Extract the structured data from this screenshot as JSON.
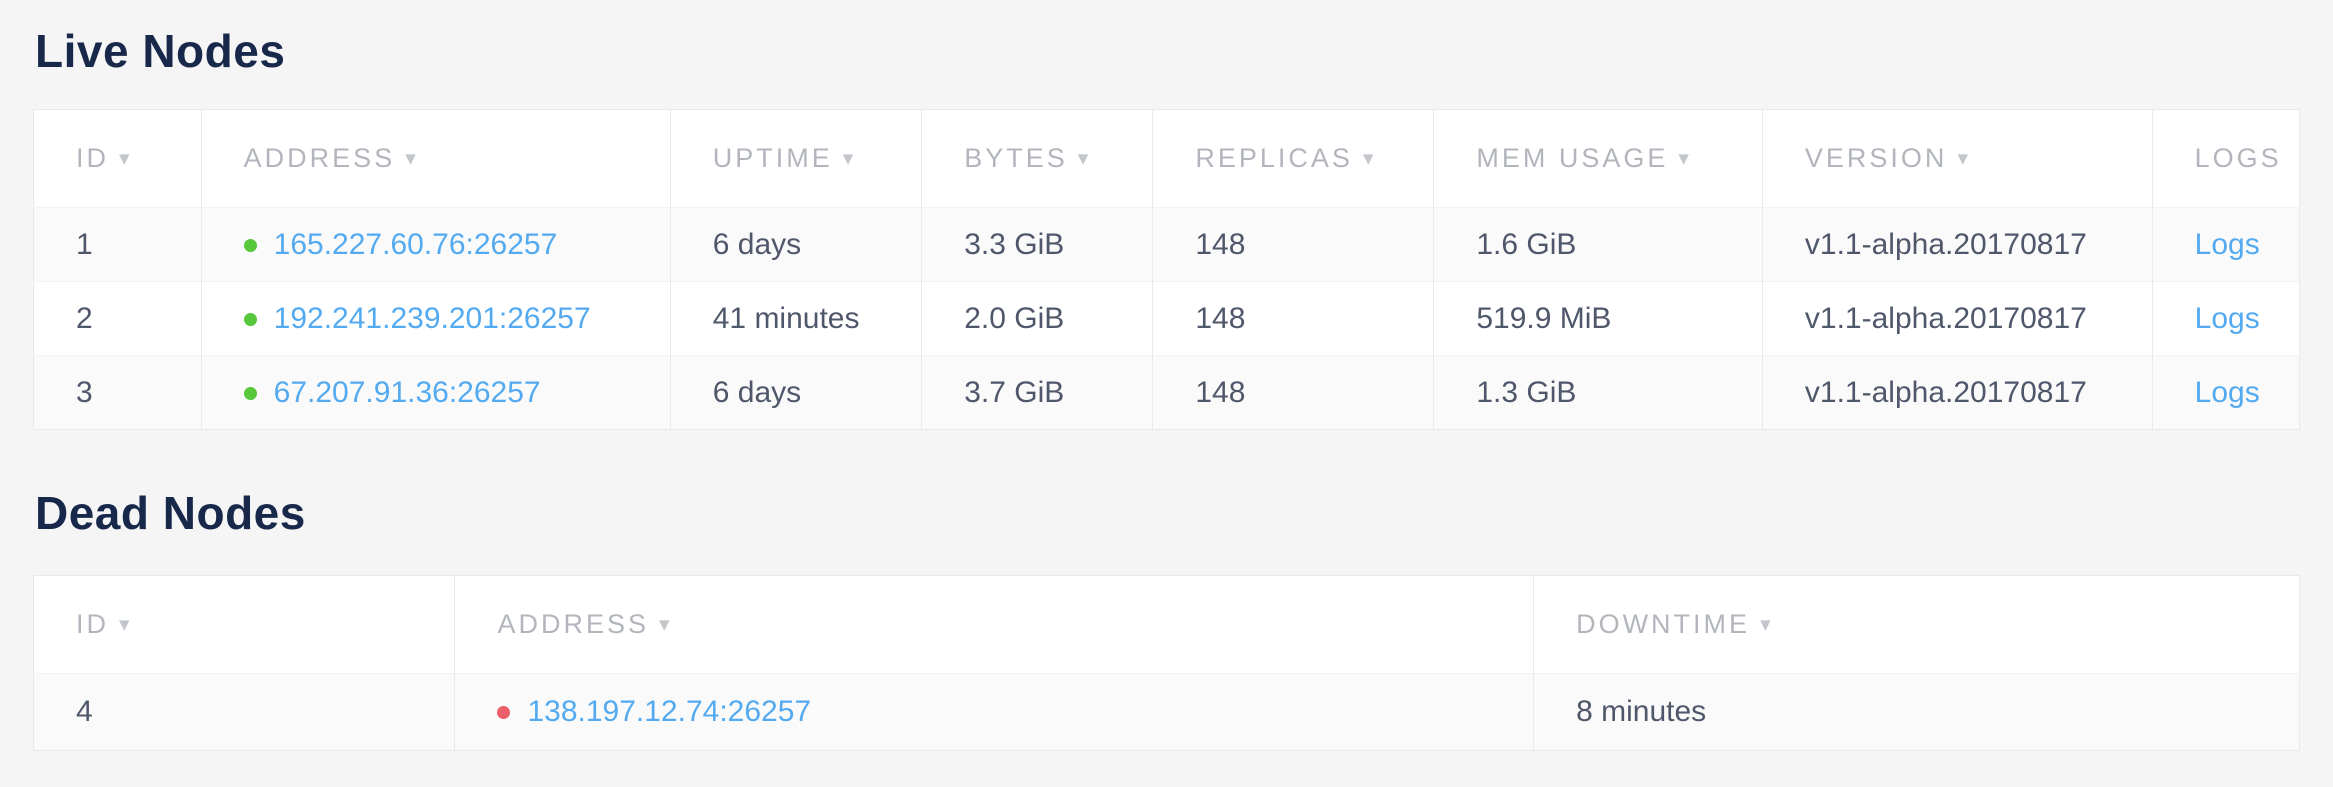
{
  "colors": {
    "page_bg": "#f5f5f5",
    "title": "#18284b",
    "header_text": "#b2b6bc",
    "cell_text": "#4f576b",
    "link": "#54aaf0",
    "status_live": "#58c73c",
    "status_dead": "#ea5f67",
    "table_bg": "#ffffff",
    "row_alt_bg": "#fafafa",
    "border": "#e9e9e9",
    "row_border": "#f3f3f3"
  },
  "icons": {
    "sort_arrow": "▾"
  },
  "live_nodes": {
    "title": "Live Nodes",
    "columns": [
      {
        "label": "ID"
      },
      {
        "label": "ADDRESS"
      },
      {
        "label": "UPTIME"
      },
      {
        "label": "BYTES"
      },
      {
        "label": "REPLICAS"
      },
      {
        "label": "MEM USAGE"
      },
      {
        "label": "VERSION"
      },
      {
        "label": "LOGS"
      }
    ],
    "rows": [
      {
        "id": "1",
        "address": "165.227.60.76:26257",
        "uptime": "6 days",
        "bytes": "3.3 GiB",
        "replicas": "148",
        "mem_usage": "1.6 GiB",
        "version": "v1.1-alpha.20170817",
        "logs": "Logs"
      },
      {
        "id": "2",
        "address": "192.241.239.201:26257",
        "uptime": "41 minutes",
        "bytes": "2.0 GiB",
        "replicas": "148",
        "mem_usage": "519.9 MiB",
        "version": "v1.1-alpha.20170817",
        "logs": "Logs"
      },
      {
        "id": "3",
        "address": "67.207.91.36:26257",
        "uptime": "6 days",
        "bytes": "3.7 GiB",
        "replicas": "148",
        "mem_usage": "1.3 GiB",
        "version": "v1.1-alpha.20170817",
        "logs": "Logs"
      }
    ]
  },
  "dead_nodes": {
    "title": "Dead Nodes",
    "columns": [
      {
        "label": "ID"
      },
      {
        "label": "ADDRESS"
      },
      {
        "label": "DOWNTIME"
      }
    ],
    "rows": [
      {
        "id": "4",
        "address": "138.197.12.74:26257",
        "downtime": "8 minutes"
      }
    ]
  }
}
